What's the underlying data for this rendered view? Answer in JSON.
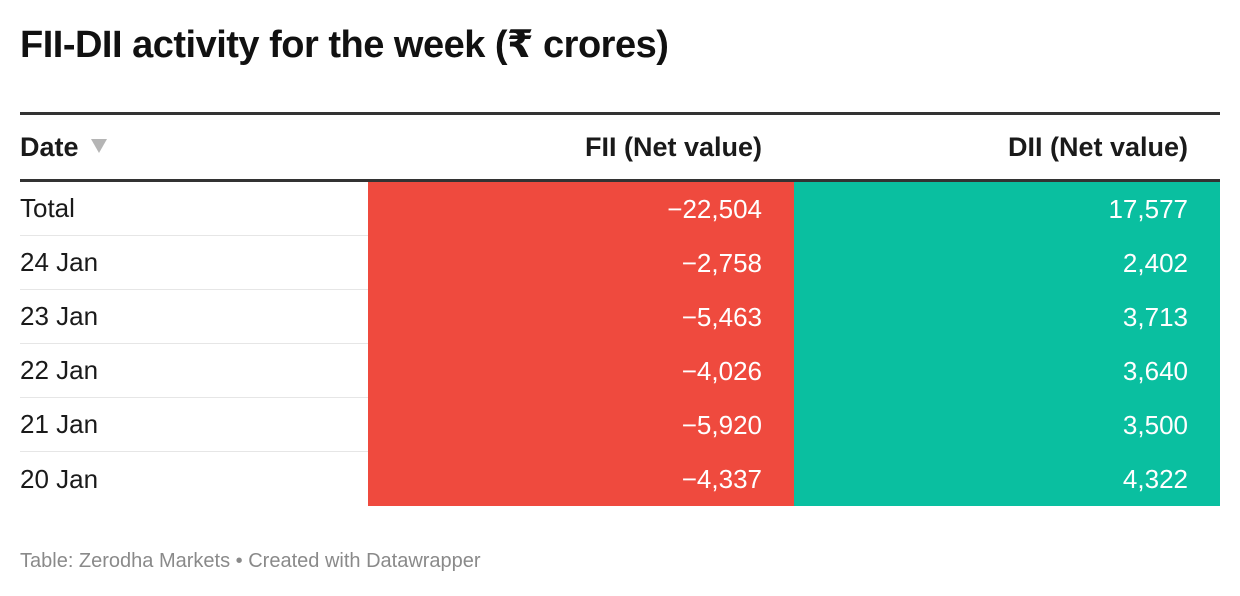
{
  "title": "FII-DII activity for the week (₹ crores)",
  "footer": {
    "source": "Table: Zerodha Markets",
    "separator": " • ",
    "credit": "Created with Datawrapper"
  },
  "colors": {
    "fii_negative": "#ef4a3e",
    "dii_positive": "#0abfa0",
    "rule": "#333333",
    "row_divider": "#e6e6e6",
    "footer_text": "#8a8a8a"
  },
  "icons": {
    "sort": "sort-down-triangle-icon"
  },
  "chart_data": {
    "type": "table",
    "title": "FII-DII activity for the week (₹ crores)",
    "columns": [
      "Date",
      "FII (Net value)",
      "DII (Net value)"
    ],
    "sorted_by": "Date",
    "sort_direction": "descending",
    "rows": [
      {
        "date": "Total",
        "fii": "−22,504",
        "dii": "17,577"
      },
      {
        "date": "24 Jan",
        "fii": "−2,758",
        "dii": "2,402"
      },
      {
        "date": "23 Jan",
        "fii": "−5,463",
        "dii": "3,713"
      },
      {
        "date": "22 Jan",
        "fii": "−4,026",
        "dii": "3,640"
      },
      {
        "date": "21 Jan",
        "fii": "−5,920",
        "dii": "3,500"
      },
      {
        "date": "20 Jan",
        "fii": "−4,337",
        "dii": "4,322"
      }
    ]
  }
}
